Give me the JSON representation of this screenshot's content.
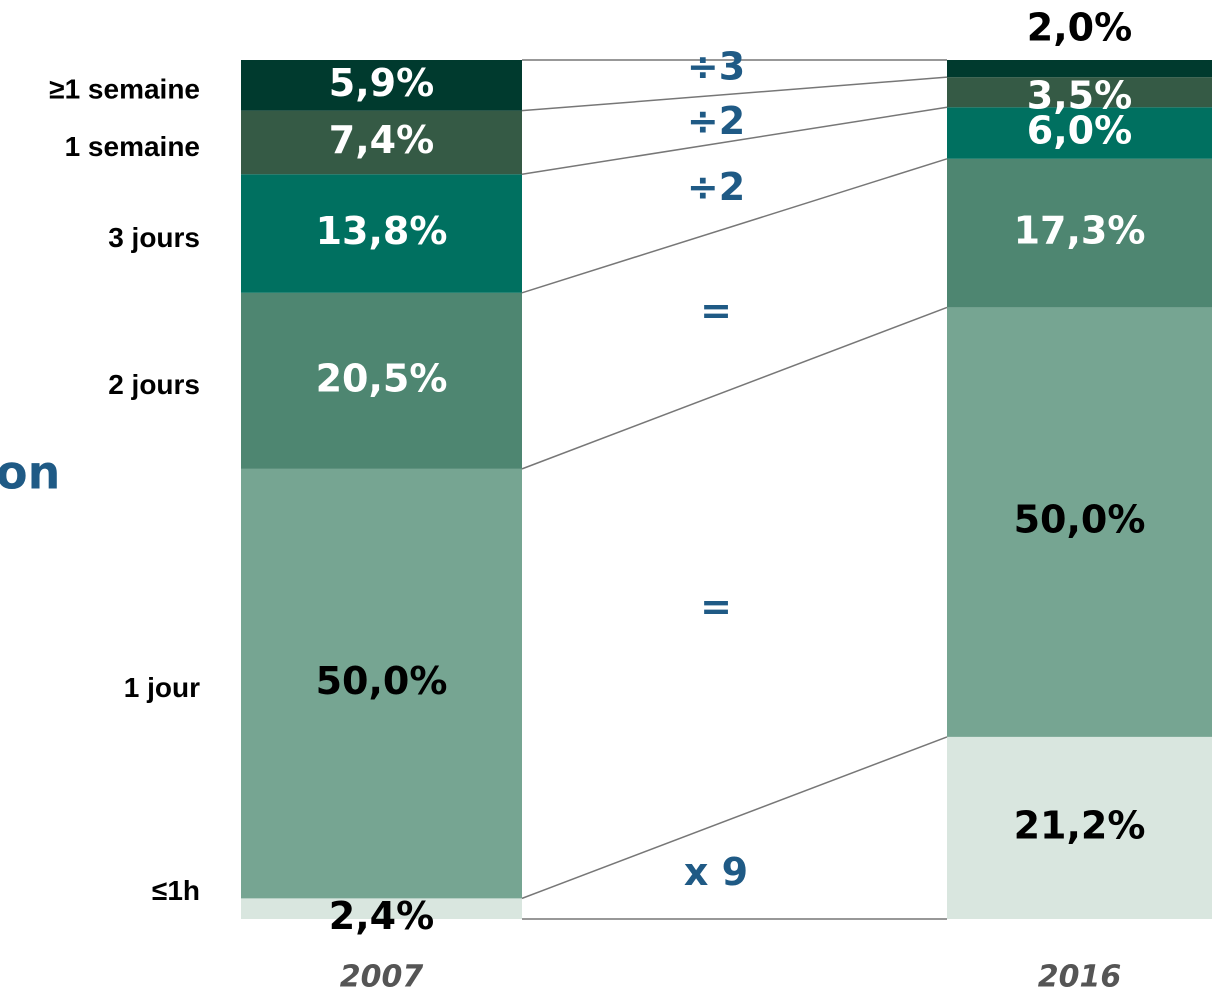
{
  "chart_data": {
    "type": "stacked-bar",
    "title": "on",
    "categories": [
      "2007",
      "2016"
    ],
    "ylim": [
      0,
      100
    ],
    "series": [
      {
        "name": "≤1h",
        "color": "#d9e6df",
        "label_color": "#000000",
        "values": [
          2.4,
          21.2
        ],
        "value_labels": [
          "2,4%",
          "21,2%"
        ]
      },
      {
        "name": "1 jour",
        "color": "#76a592",
        "label_color": "#000000",
        "values": [
          50.0,
          50.0
        ],
        "value_labels": [
          "50,0%",
          "50,0%"
        ]
      },
      {
        "name": "2 jours",
        "color": "#4e8671",
        "label_color": "#ffffff",
        "values": [
          20.5,
          17.3
        ],
        "value_labels": [
          "20,5%",
          "17,3%"
        ]
      },
      {
        "name": "3 jours",
        "color": "#007060",
        "label_color": "#ffffff",
        "values": [
          13.8,
          6.0
        ],
        "value_labels": [
          "13,8%",
          "6,0%"
        ]
      },
      {
        "name": "1 semaine",
        "color": "#355a45",
        "label_color": "#ffffff",
        "values": [
          7.4,
          3.5
        ],
        "value_labels": [
          "7,4%",
          "3,5%"
        ]
      },
      {
        "name": "≥1 semaine",
        "color": "#003a2e",
        "label_color": "#ffffff",
        "values": [
          5.9,
          2.0
        ],
        "value_labels": [
          "5,9%",
          "2,0%"
        ]
      }
    ],
    "annotations": [
      "x 9",
      "=",
      "=",
      "÷2",
      "÷2",
      "÷3"
    ],
    "annotation_color": "#1f5a85"
  }
}
